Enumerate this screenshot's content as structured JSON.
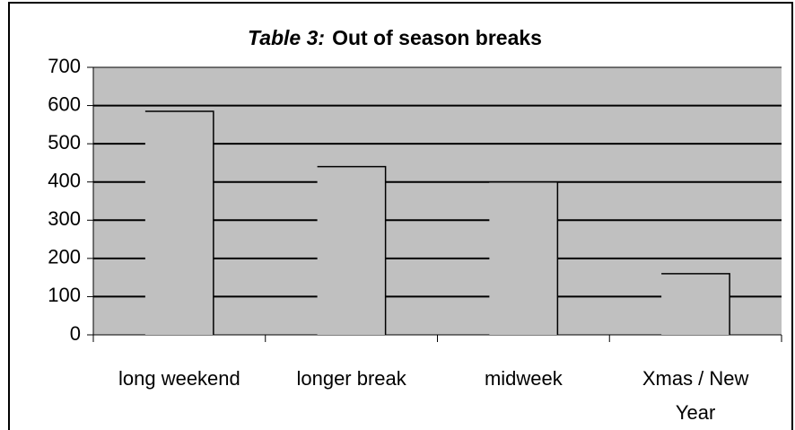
{
  "chart_data": {
    "type": "bar",
    "title_label": "Table 3:",
    "title": "Out of season breaks",
    "categories": [
      "long weekend",
      "longer break",
      "midweek",
      "Xmas / New Year"
    ],
    "values": [
      585,
      440,
      400,
      160
    ],
    "color": "#c0c0c0",
    "plot_background": "#c0c0c0",
    "ylim": [
      0,
      700
    ],
    "yticks": [
      0,
      100,
      200,
      300,
      400,
      500,
      600,
      700
    ],
    "grid": true
  }
}
